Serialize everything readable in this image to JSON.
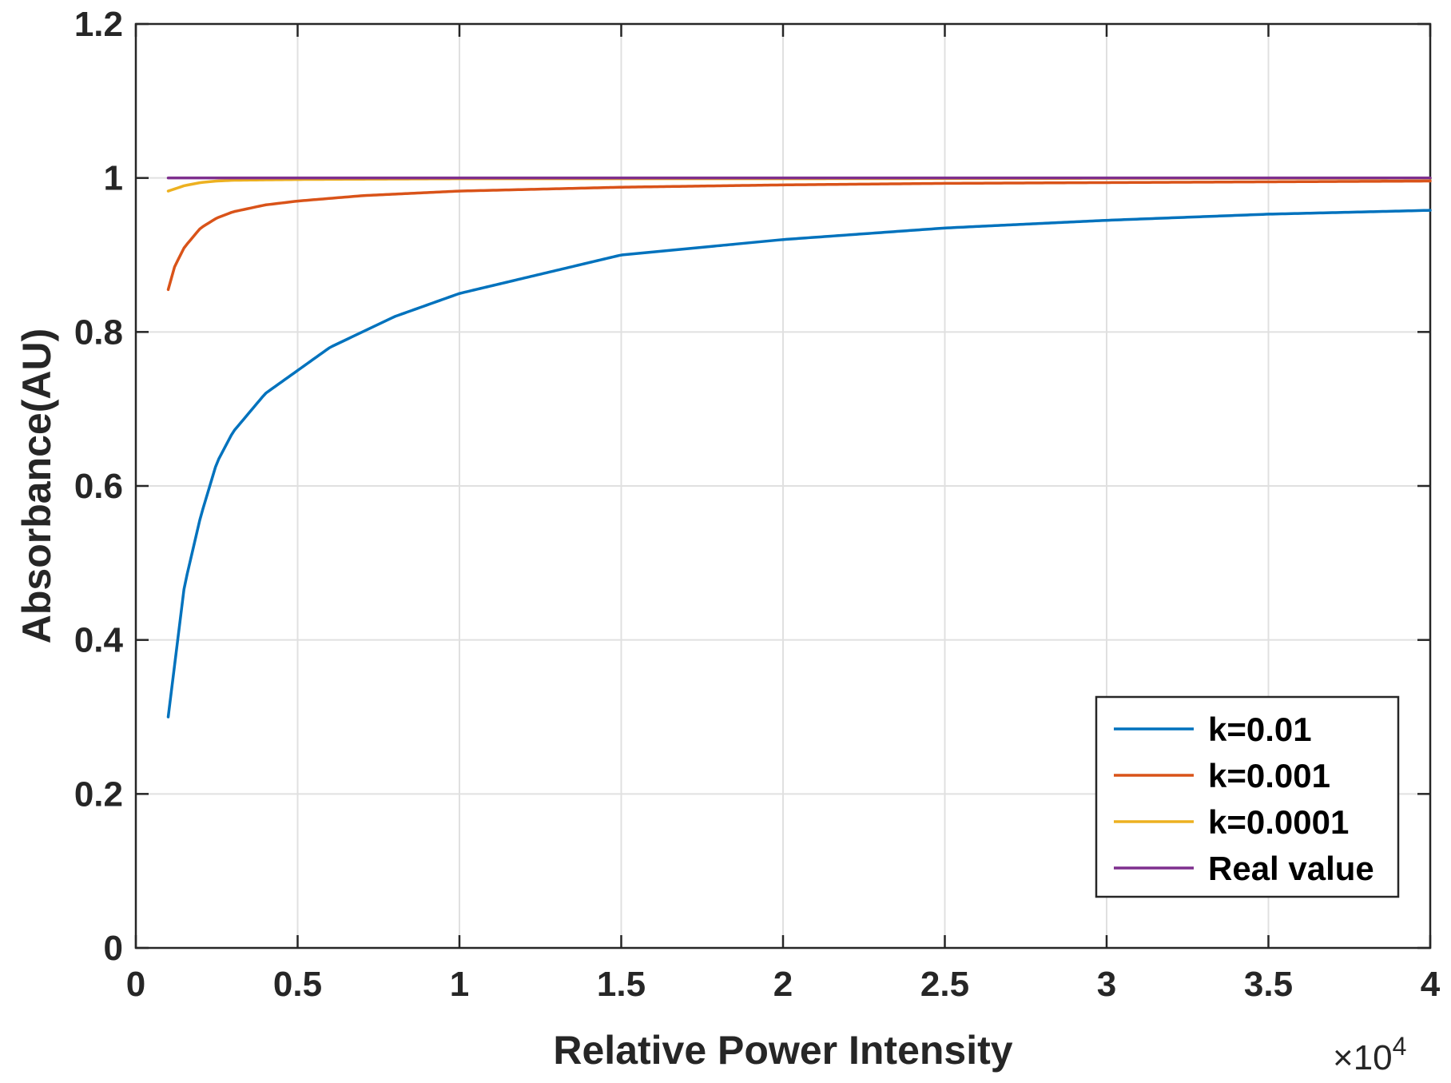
{
  "chart_data": {
    "type": "line",
    "title": "",
    "xlabel": "Relative Power Intensity",
    "ylabel": "Absorbance(AU)",
    "x_exponent_label": "×10",
    "x_exponent_power": "4",
    "xlim": [
      0,
      4
    ],
    "ylim": [
      0,
      1.2
    ],
    "x_ticks": [
      0,
      0.5,
      1,
      1.5,
      2,
      2.5,
      3,
      3.5,
      4
    ],
    "x_tick_labels": [
      "0",
      "0.5",
      "1",
      "1.5",
      "2",
      "2.5",
      "3",
      "3.5",
      "4"
    ],
    "y_ticks": [
      0,
      0.2,
      0.4,
      0.6,
      0.8,
      1,
      1.2
    ],
    "y_tick_labels": [
      "0",
      "0.2",
      "0.4",
      "0.6",
      "0.8",
      "1",
      "1.2"
    ],
    "grid": true,
    "legend_position": "bottom-right",
    "series": [
      {
        "name": "k=0.01",
        "color": "#0072BD",
        "x": [
          0.1,
          0.15,
          0.2,
          0.25,
          0.3,
          0.4,
          0.5,
          0.6,
          0.7,
          0.8,
          1.0,
          1.2,
          1.5,
          2.0,
          2.5,
          3.0,
          3.5,
          4.0
        ],
        "values": [
          0.3,
          0.47,
          0.56,
          0.63,
          0.67,
          0.72,
          0.75,
          0.78,
          0.8,
          0.82,
          0.85,
          0.87,
          0.9,
          0.92,
          0.935,
          0.945,
          0.953,
          0.958
        ]
      },
      {
        "name": "k=0.001",
        "color": "#D95319",
        "x": [
          0.1,
          0.12,
          0.15,
          0.2,
          0.25,
          0.3,
          0.4,
          0.5,
          0.7,
          1.0,
          1.5,
          2.0,
          2.5,
          3.0,
          3.5,
          4.0
        ],
        "values": [
          0.855,
          0.885,
          0.91,
          0.935,
          0.948,
          0.956,
          0.965,
          0.97,
          0.977,
          0.983,
          0.988,
          0.991,
          0.993,
          0.994,
          0.995,
          0.996
        ]
      },
      {
        "name": "k=0.0001",
        "color": "#EDB120",
        "x": [
          0.1,
          0.15,
          0.2,
          0.25,
          0.3,
          0.5,
          1.0,
          2.0,
          3.0,
          4.0
        ],
        "values": [
          0.983,
          0.99,
          0.994,
          0.996,
          0.997,
          0.998,
          0.999,
          0.999,
          0.9995,
          0.9996
        ]
      },
      {
        "name": "Real value",
        "color": "#7E2F8E",
        "x": [
          0.1,
          4.0
        ],
        "values": [
          1.0,
          1.0
        ]
      }
    ]
  }
}
